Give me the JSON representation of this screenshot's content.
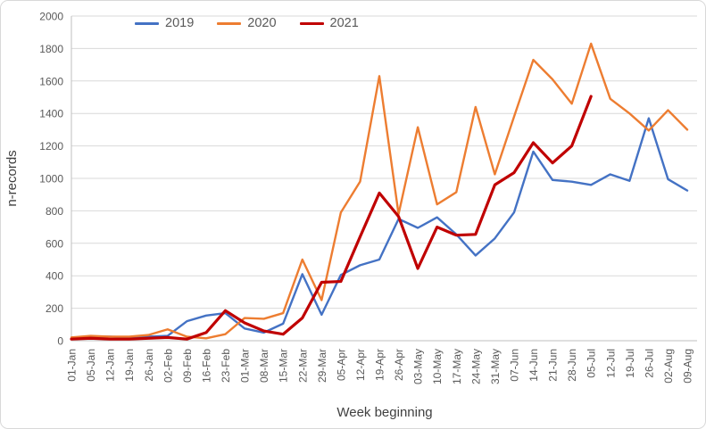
{
  "chart": {
    "frame_color": "#D9D9D9",
    "gridline_color": "#D9D9D9",
    "axis_color": "#BFBFBF",
    "tick_text_color": "#595959",
    "title_text_color": "#404040"
  },
  "chart_data": {
    "type": "line",
    "title": "",
    "xlabel": "Week beginning",
    "ylabel": "n-records",
    "ylim": [
      0,
      2000
    ],
    "yticks": [
      0,
      200,
      400,
      600,
      800,
      1000,
      1200,
      1400,
      1600,
      1800,
      2000
    ],
    "grid": true,
    "legend_position": "top",
    "categories": [
      "01-Jan",
      "05-Jan",
      "12-Jan",
      "19-Jan",
      "26-Jan",
      "02-Feb",
      "09-Feb",
      "16-Feb",
      "23-Feb",
      "01-Mar",
      "08-Mar",
      "15-Mar",
      "22-Mar",
      "29-Mar",
      "05-Apr",
      "12-Apr",
      "19-Apr",
      "26-Apr",
      "03-May",
      "10-May",
      "17-May",
      "24-May",
      "31-May",
      "07-Jun",
      "14-Jun",
      "21-Jun",
      "28-Jun",
      "05-Jul",
      "12-Jul",
      "19-Jul",
      "26-Jul",
      "02-Aug",
      "09-Aug"
    ],
    "series": [
      {
        "name": "2019",
        "color": "#4472C4",
        "stroke_width": 2.4,
        "values": [
          15,
          25,
          25,
          20,
          25,
          30,
          120,
          155,
          170,
          75,
          50,
          105,
          410,
          160,
          405,
          465,
          500,
          750,
          695,
          760,
          655,
          525,
          630,
          790,
          1165,
          990,
          980,
          960,
          1025,
          985,
          1370,
          995,
          925
        ]
      },
      {
        "name": "2020",
        "color": "#ED7D31",
        "stroke_width": 2.4,
        "values": [
          20,
          30,
          25,
          25,
          35,
          70,
          25,
          15,
          40,
          140,
          135,
          170,
          500,
          250,
          790,
          980,
          1630,
          780,
          1315,
          840,
          915,
          1440,
          1025,
          1380,
          1730,
          1610,
          1460,
          1830,
          1490,
          1400,
          1295,
          1420,
          1300
        ]
      },
      {
        "name": "2021",
        "color": "#C00000",
        "stroke_width": 3.2,
        "values": [
          10,
          15,
          10,
          10,
          15,
          20,
          10,
          50,
          185,
          110,
          60,
          40,
          140,
          360,
          365,
          640,
          910,
          765,
          445,
          700,
          650,
          655,
          960,
          1035,
          1220,
          1095,
          1200,
          1505,
          null,
          null,
          null,
          null,
          null
        ]
      }
    ]
  }
}
